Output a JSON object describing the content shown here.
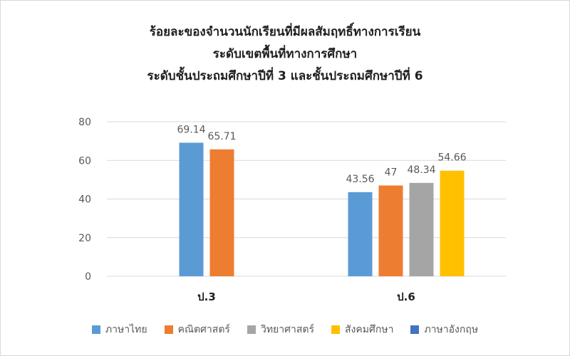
{
  "chart_data": {
    "type": "bar",
    "title_lines": [
      "ร้อยละของจำนวนนักเรียนที่มีผลสัมฤทธิ์ทางการเรียน",
      "ระดับเขตพื้นที่ทางการศึกษา",
      "ระดับชั้นประถมศึกษาปีที่ 3 และชั้นประถมศึกษาปีที่ 6"
    ],
    "categories": [
      "ป.3",
      "ป.6"
    ],
    "ylim": [
      0,
      80
    ],
    "yticks": [
      0,
      20,
      40,
      60,
      80
    ],
    "grid": true,
    "legend_position": "bottom",
    "series": [
      {
        "name": "ภาษาไทย",
        "color": "#5b9bd5",
        "values": [
          69.14,
          43.56
        ]
      },
      {
        "name": "คณิตศาสตร์",
        "color": "#ed7d31",
        "values": [
          65.71,
          47
        ]
      },
      {
        "name": "วิทยาศาสตร์",
        "color": "#a5a5a5",
        "values": [
          null,
          48.34
        ]
      },
      {
        "name": "สังคมศึกษา",
        "color": "#ffc000",
        "values": [
          null,
          54.66
        ]
      },
      {
        "name": "ภาษาอังกฤษ",
        "color": "#4472c4",
        "values": [
          null,
          null
        ]
      }
    ]
  }
}
